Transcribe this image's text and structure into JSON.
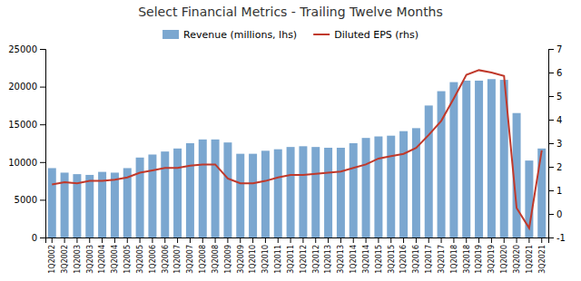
{
  "chart_data": {
    "type": "bar",
    "title": "Select Financial Metrics - Trailing Twelve Months",
    "categories": [
      "1Q2002",
      "3Q2002",
      "1Q2003",
      "3Q2003",
      "1Q2004",
      "3Q2004",
      "1Q2005",
      "3Q2005",
      "1Q2006",
      "3Q2006",
      "1Q2007",
      "3Q2007",
      "1Q2008",
      "3Q2008",
      "1Q2009",
      "3Q2009",
      "1Q2010",
      "3Q2010",
      "1Q2011",
      "3Q2011",
      "1Q2012",
      "3Q2012",
      "1Q2013",
      "3Q2013",
      "1Q2014",
      "3Q2014",
      "1Q2015",
      "3Q2015",
      "1Q2016",
      "3Q2016",
      "1Q2017",
      "3Q2017",
      "1Q2018",
      "3Q2018",
      "1Q2019",
      "3Q2019",
      "1Q2020",
      "3Q2020",
      "1Q2021",
      "3Q2021"
    ],
    "series": [
      {
        "name": "Revenue (millions, lhs)",
        "type": "bar",
        "color": "#7BA7D0",
        "values": [
          9200,
          8600,
          8400,
          8300,
          8700,
          8600,
          9200,
          10600,
          11000,
          11400,
          11800,
          12500,
          13000,
          13000,
          12600,
          11100,
          11100,
          11500,
          11700,
          12000,
          12100,
          12000,
          11900,
          11900,
          12500,
          13200,
          13400,
          13500,
          14100,
          14500,
          17500,
          19400,
          20600,
          20800,
          20800,
          21000,
          20900,
          16500,
          10200,
          11800
        ]
      },
      {
        "name": "Diluted EPS (rhs)",
        "type": "line",
        "axis": "y2",
        "color": "#C0392B",
        "values": [
          1.25,
          1.35,
          1.3,
          1.4,
          1.4,
          1.45,
          1.55,
          1.75,
          1.85,
          1.95,
          1.95,
          2.05,
          2.1,
          2.1,
          1.5,
          1.3,
          1.3,
          1.4,
          1.55,
          1.65,
          1.65,
          1.7,
          1.75,
          1.8,
          1.95,
          2.1,
          2.35,
          2.45,
          2.55,
          2.8,
          3.35,
          3.95,
          4.9,
          5.9,
          6.1,
          6.0,
          5.85,
          0.25,
          -0.6,
          2.7
        ]
      }
    ],
    "ylim": [
      0,
      25000
    ],
    "yticks": [
      0,
      5000,
      10000,
      15000,
      20000,
      25000
    ],
    "y2lim": [
      -1,
      7
    ],
    "y2ticks": [
      -1,
      0,
      1,
      2,
      3,
      4,
      5,
      6,
      7
    ],
    "grid": false,
    "legend": "top"
  }
}
